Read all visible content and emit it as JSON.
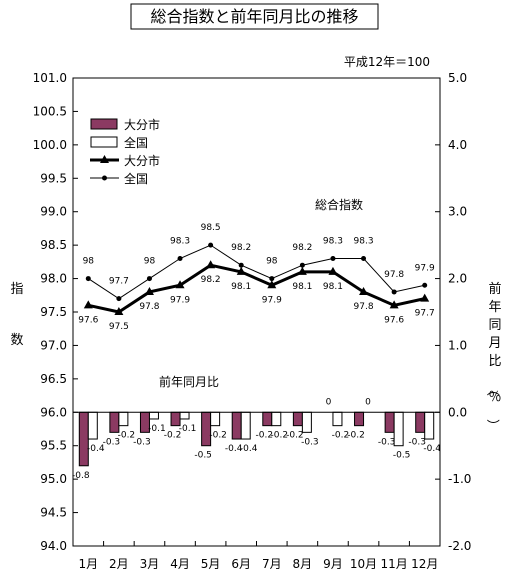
{
  "chart_data": {
    "type": "bar",
    "title": "総合指数と前年同月比の推移",
    "base_note": "平成12年＝100",
    "categories": [
      "1月",
      "2月",
      "3月",
      "4月",
      "5月",
      "6月",
      "7月",
      "8月",
      "9月",
      "10月",
      "11月",
      "12月"
    ],
    "left_axis": {
      "label": "指数",
      "ylim": [
        94.0,
        101.0
      ],
      "ticks": [
        "94.0",
        "94.5",
        "95.0",
        "95.5",
        "96.0",
        "96.5",
        "97.0",
        "97.5",
        "98.0",
        "98.5",
        "99.0",
        "99.5",
        "100.0",
        "100.5",
        "101.0"
      ]
    },
    "right_axis": {
      "label": "前年同月比（％）",
      "ylim": [
        -2.0,
        5.0
      ],
      "ticks": [
        "-2.0",
        "-1.0",
        "0.0",
        "1.0",
        "2.0",
        "3.0",
        "4.0",
        "5.0"
      ]
    },
    "annotations": {
      "index_label": "総合指数",
      "yoy_label": "前年同月比"
    },
    "legend": [
      {
        "label": "大分市",
        "kind": "bar",
        "color": "#8b3a62"
      },
      {
        "label": "全国",
        "kind": "bar",
        "color": "#ffffff"
      },
      {
        "label": "大分市",
        "kind": "line-triangle"
      },
      {
        "label": "全国",
        "kind": "line-dot"
      }
    ],
    "legend_position": "top-left",
    "grid": false,
    "series": [
      {
        "name": "大分市",
        "axis": "right",
        "kind": "bar",
        "color": "#8b3a62",
        "values": [
          -0.8,
          -0.3,
          -0.3,
          -0.2,
          -0.5,
          -0.4,
          -0.2,
          -0.2,
          null,
          -0.2,
          -0.3,
          -0.3
        ],
        "labels": [
          "-0.8",
          "-0.3",
          "-0.3",
          "-0.2",
          "-0.5",
          "-0.4",
          "-0.2",
          "-0.2",
          "0",
          "-0.2",
          "-0.3",
          "-0.3"
        ]
      },
      {
        "name": "全国",
        "axis": "right",
        "kind": "bar",
        "color": "#ffffff",
        "values": [
          -0.4,
          -0.2,
          -0.1,
          -0.1,
          -0.2,
          -0.4,
          -0.2,
          -0.3,
          -0.2,
          null,
          -0.5,
          -0.4
        ],
        "labels": [
          "-0.4",
          "-0.2",
          "-0.1",
          "-0.1",
          "-0.2",
          "-0.4",
          "-0.2",
          "-0.3",
          "-0.2",
          "0",
          "-0.5",
          "-0.4"
        ]
      },
      {
        "name": "大分市",
        "axis": "left",
        "kind": "line",
        "values": [
          97.6,
          97.5,
          97.8,
          97.9,
          98.2,
          98.1,
          97.9,
          98.1,
          98.1,
          97.8,
          97.6,
          97.7
        ],
        "labels": [
          "97.6",
          "97.5",
          "97.8",
          "97.9",
          "98.2",
          "98.1",
          "97.9",
          "98.1",
          "98.1",
          "97.8",
          "97.6",
          "97.7"
        ]
      },
      {
        "name": "全国",
        "axis": "left",
        "kind": "line",
        "values": [
          98.0,
          97.7,
          98.0,
          98.3,
          98.5,
          98.2,
          98.0,
          98.2,
          98.3,
          98.3,
          97.8,
          97.9
        ],
        "labels": [
          "98",
          "97.7",
          "98",
          "98.3",
          "98.5",
          "98.2",
          "98",
          "98.2",
          "98.3",
          "98.3",
          "97.8",
          "97.9"
        ]
      }
    ]
  }
}
